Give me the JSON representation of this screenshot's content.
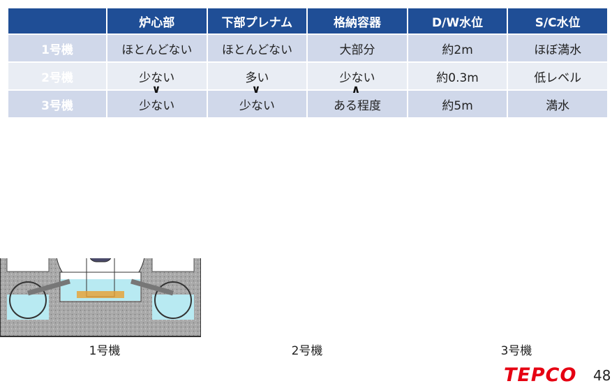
{
  "table": {
    "columns": [
      "炉心部",
      "下部プレナム",
      "格納容器",
      "D/W水位",
      "S/C水位"
    ],
    "rows": [
      {
        "unit": "1号機",
        "cells": [
          "ほとんどない",
          "ほとんどない",
          "大部分",
          "約2m",
          "ほぼ満水"
        ]
      },
      {
        "unit": "2号機",
        "cells": [
          "少ない",
          "多い",
          "少ない",
          "約0.3m",
          "低レベル"
        ]
      },
      {
        "unit": "3号機",
        "cells": [
          "少ない",
          "少ない",
          "ある程度",
          "約5m",
          "満水"
        ]
      }
    ],
    "comparisons": [
      "∨",
      "∨",
      "∧"
    ]
  },
  "diagrams": [
    {
      "label": "1号機"
    },
    {
      "label": "2号機"
    },
    {
      "label": "3号機"
    }
  ],
  "footer": {
    "logo": "TEPCO",
    "page": "48"
  }
}
